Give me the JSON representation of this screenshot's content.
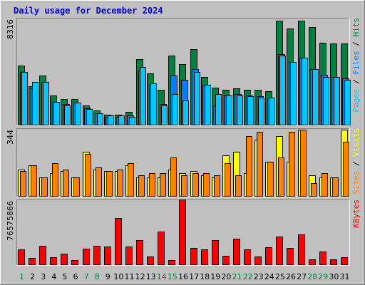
{
  "chart_data": {
    "type": "bar",
    "title": "Daily usage for December 2024",
    "days": [
      "1",
      "2",
      "3",
      "4",
      "5",
      "6",
      "7",
      "8",
      "9",
      "10",
      "11",
      "12",
      "13",
      "14",
      "15",
      "16",
      "17",
      "18",
      "19",
      "20",
      "21",
      "22",
      "23",
      "24",
      "25",
      "26",
      "27",
      "28",
      "29",
      "30",
      "31"
    ],
    "weekend_days": [
      "1",
      "7",
      "8",
      "14",
      "15",
      "21",
      "22",
      "28",
      "29"
    ],
    "colors": {
      "hits": "#008040",
      "files": "#0080ff",
      "pages": "#00c8ff",
      "visits": "#ffff00",
      "sites": "#ff8000",
      "kbytes": "#ff0000",
      "weekday_label": "#000000",
      "weekend_label": "#008040",
      "title": "#0000cc"
    },
    "panels": [
      {
        "id": "hits-files-pages",
        "ymax_label": "8316",
        "ymax": 8316,
        "legend": [
          {
            "label": "Pages",
            "color": "#00c8ff"
          },
          {
            "label": "Files",
            "color": "#0080ff"
          },
          {
            "label": "Hits",
            "color": "#008040"
          }
        ],
        "series": [
          {
            "name": "Hits",
            "values": [
              4600,
              3000,
              3800,
              2300,
              2000,
              2000,
              1500,
              1100,
              800,
              800,
              1000,
              5100,
              4000,
              2700,
              5400,
              4700,
              5900,
              3700,
              2900,
              2700,
              2800,
              2700,
              2700,
              2600,
              8100,
              7500,
              8100,
              7600,
              6400,
              6300,
              6300
            ]
          },
          {
            "name": "Files",
            "values": [
              4100,
              2800,
              3300,
              1800,
              1600,
              1700,
              1300,
              900,
              600,
              600,
              700,
              4200,
              3100,
              1600,
              3800,
              3500,
              4300,
              3100,
              1500,
              2300,
              2400,
              2300,
              2200,
              2100,
              5500,
              4900,
              5200,
              4300,
              3900,
              3700,
              3600
            ]
          },
          {
            "name": "Pages",
            "values": [
              4100,
              3300,
              3300,
              1800,
              1500,
              1700,
              1200,
              900,
              700,
              700,
              600,
              4500,
              3200,
              1500,
              2400,
              1900,
              4100,
              3100,
              2400,
              2300,
              2300,
              2200,
              2100,
              2100,
              5400,
              4900,
              5200,
              4300,
              3700,
              3700,
              3500
            ]
          }
        ]
      },
      {
        "id": "visits-sites",
        "ymax_label": "344",
        "ymax": 344,
        "legend": [
          {
            "label": "Sites",
            "color": "#ff8000"
          },
          {
            "label": "Visits",
            "color": "#ffff00"
          }
        ],
        "series": [
          {
            "name": "Visits",
            "values": [
              135,
              155,
              95,
              115,
              125,
              95,
              225,
              135,
              125,
              125,
              155,
              95,
              95,
              95,
              135,
              115,
              125,
              105,
              95,
              205,
              225,
              115,
              285,
              175,
              305,
              175,
              335,
              105,
              95,
              95,
              335
            ]
          },
          {
            "name": "Sites",
            "values": [
              125,
              155,
              95,
              165,
              135,
              95,
              215,
              145,
              125,
              135,
              165,
              105,
              115,
              115,
              195,
              105,
              115,
              115,
              105,
              165,
              105,
              305,
              325,
              175,
              195,
              325,
              335,
              65,
              115,
              95,
              275
            ]
          }
        ]
      },
      {
        "id": "kbytes",
        "ymax_label": "76575866",
        "ymax": 76575866,
        "legend": [
          {
            "label": "KBytes",
            "color": "#ff0000"
          }
        ],
        "series": [
          {
            "name": "KBytes",
            "values": [
              17500000,
              7500000,
              22000000,
              8500000,
              12500000,
              5000000,
              18500000,
              22000000,
              21000000,
              55000000,
              21000000,
              28500000,
              9500000,
              38500000,
              5000000,
              76500000,
              19000000,
              18000000,
              29000000,
              10500000,
              30000000,
              17500000,
              9000000,
              20000000,
              33000000,
              19000000,
              35000000,
              5500000,
              15000000,
              5500000,
              8000000
            ]
          }
        ]
      }
    ]
  }
}
